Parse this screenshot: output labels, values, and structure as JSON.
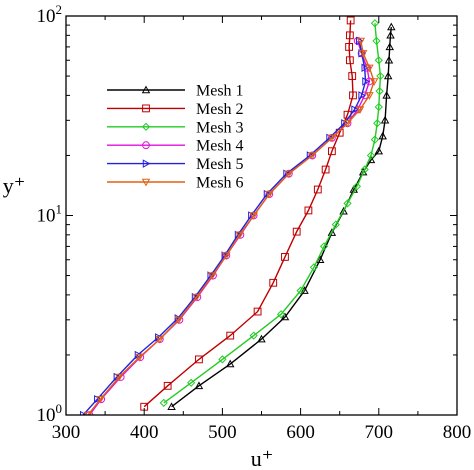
{
  "chart_data": {
    "type": "line",
    "xlabel": "u⁺",
    "ylabel": "y⁺",
    "xlim": [
      300,
      800
    ],
    "ylim": [
      1,
      100
    ],
    "y_scale": "log",
    "grid": false,
    "legend_position": "left-center",
    "x_ticks": [
      "300",
      "400",
      "500",
      "600",
      "700",
      "800"
    ],
    "y_ticks": [
      {
        "base": "10",
        "exp": "0"
      },
      {
        "base": "10",
        "exp": "1"
      },
      {
        "base": "10",
        "exp": "2"
      }
    ],
    "series": [
      {
        "name": "Mesh 1",
        "color": "#000000",
        "marker": "triangle",
        "points": [
          [
            435,
            1.1
          ],
          [
            470,
            1.4
          ],
          [
            510,
            1.8
          ],
          [
            550,
            2.4
          ],
          [
            580,
            3.1
          ],
          [
            605,
            4.2
          ],
          [
            625,
            6.0
          ],
          [
            640,
            8.2
          ],
          [
            655,
            10.5
          ],
          [
            668,
            13.5
          ],
          [
            680,
            16.5
          ],
          [
            690,
            19
          ],
          [
            700,
            21
          ],
          [
            705,
            25
          ],
          [
            708,
            30
          ],
          [
            710,
            40
          ],
          [
            712,
            50
          ],
          [
            713,
            60
          ],
          [
            714,
            70
          ],
          [
            715,
            80
          ],
          [
            716,
            88
          ]
        ]
      },
      {
        "name": "Mesh 2",
        "color": "#c00000",
        "marker": "square",
        "points": [
          [
            400,
            1.1
          ],
          [
            430,
            1.4
          ],
          [
            470,
            1.9
          ],
          [
            510,
            2.5
          ],
          [
            545,
            3.3
          ],
          [
            565,
            4.6
          ],
          [
            580,
            6.2
          ],
          [
            595,
            8.3
          ],
          [
            610,
            10.6
          ],
          [
            622,
            13.5
          ],
          [
            632,
            17
          ],
          [
            640,
            21
          ],
          [
            650,
            26
          ],
          [
            660,
            32
          ],
          [
            667,
            40
          ],
          [
            666,
            50
          ],
          [
            663,
            60
          ],
          [
            662,
            70
          ],
          [
            663,
            80
          ],
          [
            664,
            95
          ]
        ]
      },
      {
        "name": "Mesh 3",
        "color": "#22cc22",
        "marker": "diamond",
        "points": [
          [
            425,
            1.15
          ],
          [
            460,
            1.45
          ],
          [
            500,
            1.9
          ],
          [
            540,
            2.5
          ],
          [
            575,
            3.2
          ],
          [
            600,
            4.2
          ],
          [
            617,
            5.5
          ],
          [
            630,
            7.0
          ],
          [
            645,
            9.0
          ],
          [
            660,
            11.5
          ],
          [
            672,
            14
          ],
          [
            682,
            17
          ],
          [
            690,
            20
          ],
          [
            695,
            24
          ],
          [
            698,
            29
          ],
          [
            700,
            35
          ],
          [
            701,
            42
          ],
          [
            702,
            50
          ],
          [
            700,
            60
          ],
          [
            697,
            75
          ],
          [
            695,
            92
          ]
        ]
      },
      {
        "name": "Mesh 4",
        "color": "#e010e0",
        "marker": "circle",
        "points": [
          [
            330,
            1.0
          ],
          [
            345,
            1.2
          ],
          [
            370,
            1.55
          ],
          [
            395,
            1.95
          ],
          [
            420,
            2.4
          ],
          [
            445,
            3.0
          ],
          [
            468,
            3.9
          ],
          [
            488,
            5.0
          ],
          [
            505,
            6.3
          ],
          [
            523,
            8.0
          ],
          [
            540,
            10.0
          ],
          [
            560,
            12.8
          ],
          [
            585,
            16.2
          ],
          [
            615,
            20.0
          ],
          [
            640,
            24.5
          ],
          [
            660,
            29
          ],
          [
            673,
            34
          ],
          [
            682,
            40
          ],
          [
            688,
            47
          ],
          [
            685,
            55
          ],
          [
            678,
            65
          ],
          [
            673,
            75
          ]
        ]
      },
      {
        "name": "Mesh 5",
        "color": "#2222dd",
        "marker": "right-triangle",
        "points": [
          [
            322,
            1.0
          ],
          [
            340,
            1.2
          ],
          [
            365,
            1.55
          ],
          [
            392,
            2.0
          ],
          [
            418,
            2.45
          ],
          [
            443,
            3.05
          ],
          [
            465,
            3.9
          ],
          [
            485,
            5.0
          ],
          [
            503,
            6.3
          ],
          [
            520,
            8.0
          ],
          [
            537,
            10.0
          ],
          [
            557,
            12.8
          ],
          [
            582,
            16.2
          ],
          [
            612,
            20.0
          ],
          [
            637,
            24.5
          ],
          [
            656,
            29
          ],
          [
            669,
            34
          ],
          [
            678,
            40
          ],
          [
            683,
            47
          ],
          [
            682,
            55
          ],
          [
            678,
            65
          ],
          [
            675,
            75
          ]
        ]
      },
      {
        "name": "Mesh 6",
        "color": "#e06010",
        "marker": "down-triangle",
        "points": [
          [
            328,
            1.0
          ],
          [
            344,
            1.2
          ],
          [
            368,
            1.55
          ],
          [
            394,
            1.95
          ],
          [
            420,
            2.4
          ],
          [
            444,
            3.0
          ],
          [
            467,
            3.9
          ],
          [
            487,
            5.0
          ],
          [
            505,
            6.3
          ],
          [
            522,
            8.0
          ],
          [
            540,
            10.0
          ],
          [
            560,
            12.8
          ],
          [
            585,
            16.2
          ],
          [
            615,
            20.0
          ],
          [
            640,
            24.5
          ],
          [
            660,
            29
          ],
          [
            676,
            34
          ],
          [
            688,
            40
          ],
          [
            694,
            47
          ],
          [
            688,
            55
          ],
          [
            680,
            65
          ],
          [
            677,
            75
          ]
        ]
      }
    ]
  }
}
